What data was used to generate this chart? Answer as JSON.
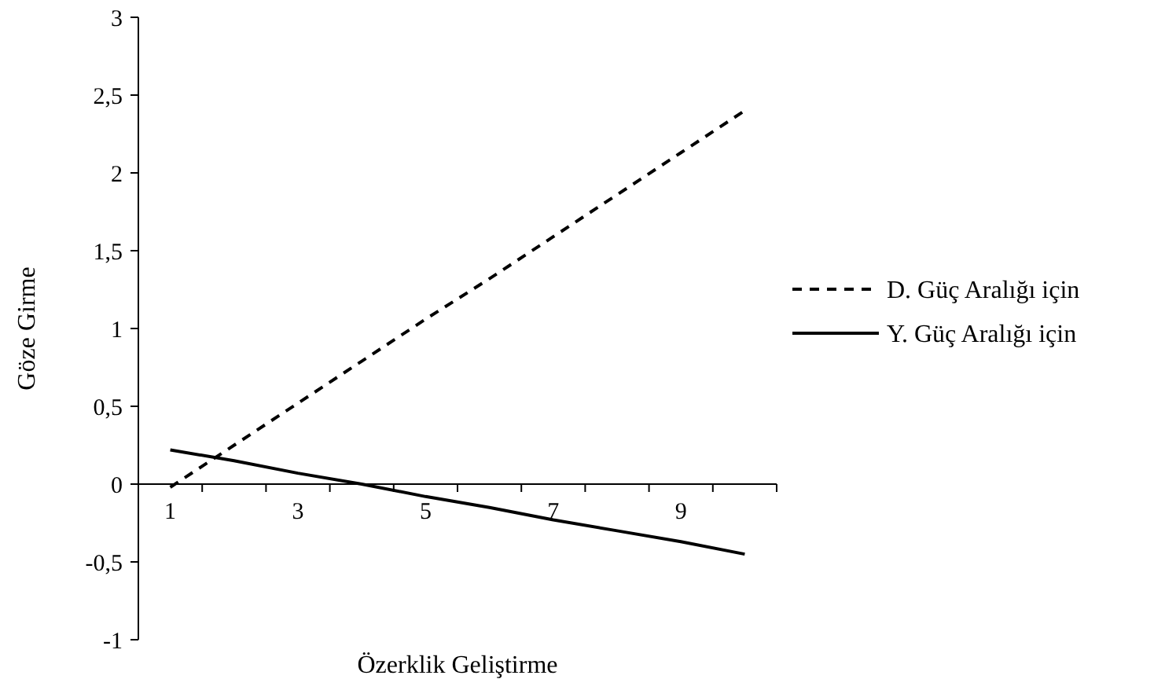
{
  "chart_data": {
    "type": "line",
    "xlabel": "Özerklik Geliştirme",
    "ylabel": "Göze Girme",
    "categories": [
      "1",
      null,
      "3",
      null,
      "5",
      null,
      "7",
      null,
      "9",
      null
    ],
    "series": [
      {
        "name": "D. Güç Aralığı için",
        "color": "#000000",
        "line_style": "dashed",
        "values": [
          -0.02,
          0.25,
          0.52,
          0.79,
          1.06,
          1.32,
          1.59,
          1.86,
          2.13,
          2.4
        ]
      },
      {
        "name": "Y. Güç Aralığı için",
        "color": "#000000",
        "line_style": "solid",
        "values": [
          0.22,
          0.15,
          0.07,
          0.0,
          -0.08,
          -0.15,
          -0.23,
          -0.3,
          -0.37,
          -0.45
        ]
      }
    ],
    "ylim": [
      -1,
      3
    ],
    "yticks": [
      -1,
      {
        "value": -0.5,
        "label": "-0,5"
      },
      0,
      {
        "value": 0.5,
        "label": "0,5"
      },
      1,
      {
        "value": 1.5,
        "label": "1,5"
      },
      2,
      {
        "value": 2.5,
        "label": "2,5"
      },
      3
    ],
    "grid": false,
    "legend": "right",
    "marker": "none"
  }
}
